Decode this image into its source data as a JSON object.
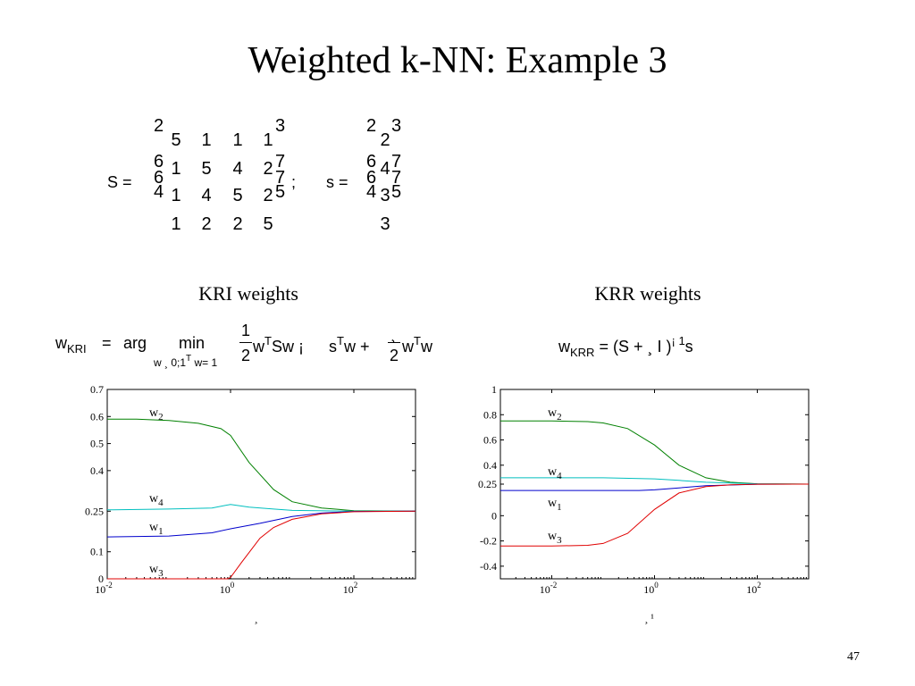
{
  "slide": {
    "title": "Weighted k-NN: Example 3",
    "page_number": "47"
  },
  "matrices": {
    "S_label": "S =",
    "S_rows": [
      [
        "5",
        "1",
        "1",
        "1"
      ],
      [
        "1",
        "5",
        "4",
        "2"
      ],
      [
        "1",
        "4",
        "5",
        "2"
      ],
      [
        "1",
        "2",
        "2",
        "5"
      ]
    ],
    "separator": ";",
    "s_label": "s =",
    "s_values": [
      "2",
      "4",
      "3",
      "3"
    ],
    "bracket_glyphs": {
      "top_left": "2",
      "top_right": "3",
      "mid_left": "6",
      "mid_right": "7",
      "bottom_left": "4",
      "bottom_right": "5"
    }
  },
  "formulas": {
    "kri": {
      "lhs": "w",
      "lhs_sub": "KRI",
      "eq": "=",
      "arg": "arg",
      "min": "min",
      "min_sub": "w ¸ 0;1",
      "min_sub_sup": "T",
      "min_sub_tail": "w= 1",
      "frac1_num": "1",
      "frac1_den": "2",
      "term1": "w",
      "term1_sup": "T",
      "term1_tail": "Sw ¡",
      "term2": "s",
      "term2_sup": "T",
      "term2_tail": "w +",
      "frac2_num": "¸",
      "frac2_den": "2",
      "term3": "w",
      "term3_sup": "T",
      "term3_tail": "w"
    },
    "krr": {
      "lhs": "w",
      "lhs_sub": "KRR",
      "rhs": "=  (S + ¸ I )",
      "rhs_sup": "¡ 1",
      "rhs_tail": "s"
    }
  },
  "chart_data": [
    {
      "type": "line",
      "title": "KRI weights",
      "xlabel": "¸",
      "ylabel": "",
      "x_scale": "log",
      "xlim": [
        0.01,
        1000
      ],
      "ylim": [
        0,
        0.7
      ],
      "x_ticks": [
        {
          "base": "10",
          "exp": "-2",
          "value": 0.01
        },
        {
          "base": "10",
          "exp": "0",
          "value": 1
        },
        {
          "base": "10",
          "exp": "2",
          "value": 100
        }
      ],
      "y_ticks": [
        "0",
        "0.1",
        "0.25",
        "0.4",
        "0.5",
        "0.6",
        "0.7"
      ],
      "series": [
        {
          "name": "w",
          "name_sub": "2",
          "color": "#008000",
          "x": [
            0.01,
            0.03,
            0.1,
            0.3,
            0.7,
            1,
            2,
            5,
            10,
            30,
            100,
            1000
          ],
          "y": [
            0.59,
            0.59,
            0.585,
            0.575,
            0.555,
            0.53,
            0.43,
            0.33,
            0.285,
            0.262,
            0.252,
            0.25
          ]
        },
        {
          "name": "w",
          "name_sub": "4",
          "color": "#00bfbf",
          "x": [
            0.01,
            0.1,
            0.5,
            1,
            2,
            5,
            10,
            100,
            1000
          ],
          "y": [
            0.255,
            0.258,
            0.262,
            0.275,
            0.265,
            0.258,
            0.253,
            0.25,
            0.25
          ]
        },
        {
          "name": "w",
          "name_sub": "1",
          "color": "#0000cc",
          "x": [
            0.01,
            0.1,
            0.5,
            1,
            3,
            10,
            30,
            100,
            1000
          ],
          "y": [
            0.155,
            0.158,
            0.17,
            0.185,
            0.205,
            0.23,
            0.243,
            0.249,
            0.25
          ]
        },
        {
          "name": "w",
          "name_sub": "3",
          "color": "#e00000",
          "x": [
            0.01,
            0.1,
            0.9,
            1,
            1.5,
            3,
            5,
            10,
            30,
            100,
            1000
          ],
          "y": [
            0,
            0,
            0,
            0.005,
            0.06,
            0.15,
            0.19,
            0.22,
            0.24,
            0.248,
            0.25
          ]
        }
      ]
    },
    {
      "type": "line",
      "title": "KRR weights",
      "xlabel": "¸ ¹",
      "ylabel": "",
      "x_scale": "log",
      "xlim": [
        0.001,
        1000
      ],
      "ylim": [
        -0.5,
        1
      ],
      "x_ticks": [
        {
          "base": "10",
          "exp": "-2",
          "value": 0.01
        },
        {
          "base": "10",
          "exp": "0",
          "value": 1
        },
        {
          "base": "10",
          "exp": "2",
          "value": 100
        }
      ],
      "y_ticks": [
        "-0.4",
        "-0.2",
        "0",
        "0.25",
        "0.4",
        "0.6",
        "0.8",
        "1"
      ],
      "series": [
        {
          "name": "w",
          "name_sub": "2",
          "color": "#008000",
          "x": [
            0.001,
            0.01,
            0.05,
            0.1,
            0.3,
            1,
            3,
            10,
            30,
            100,
            1000
          ],
          "y": [
            0.75,
            0.75,
            0.745,
            0.735,
            0.69,
            0.56,
            0.4,
            0.3,
            0.265,
            0.253,
            0.25
          ]
        },
        {
          "name": "w",
          "name_sub": "4",
          "color": "#00bfbf",
          "x": [
            0.001,
            0.01,
            0.1,
            1,
            3,
            10,
            100,
            1000
          ],
          "y": [
            0.3,
            0.3,
            0.3,
            0.292,
            0.28,
            0.265,
            0.252,
            0.25
          ]
        },
        {
          "name": "w",
          "name_sub": "1",
          "color": "#0000cc",
          "x": [
            0.001,
            0.01,
            0.1,
            0.5,
            1,
            3,
            10,
            100,
            1000
          ],
          "y": [
            0.2,
            0.2,
            0.2,
            0.2,
            0.205,
            0.22,
            0.238,
            0.249,
            0.25
          ]
        },
        {
          "name": "w",
          "name_sub": "3",
          "color": "#e00000",
          "x": [
            0.001,
            0.01,
            0.05,
            0.1,
            0.3,
            1,
            3,
            10,
            30,
            100,
            1000
          ],
          "y": [
            -0.24,
            -0.24,
            -0.235,
            -0.22,
            -0.14,
            0.05,
            0.18,
            0.23,
            0.245,
            0.249,
            0.25
          ]
        }
      ]
    }
  ]
}
